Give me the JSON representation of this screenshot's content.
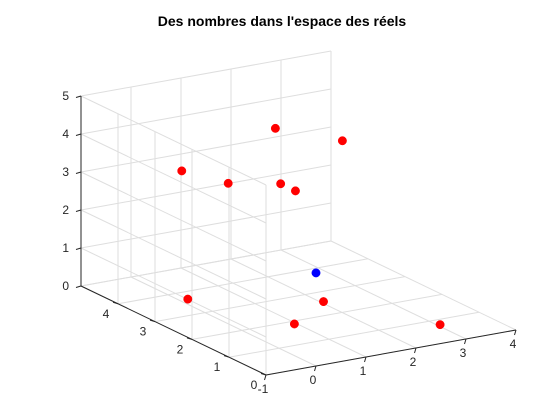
{
  "chart_data": {
    "type": "scatter",
    "title": "Des nombres dans l'espace des réels",
    "xlim": [
      -1,
      4
    ],
    "ylim": [
      0,
      5
    ],
    "zlim": [
      0,
      5
    ],
    "x_ticks": [
      -1,
      0,
      1,
      2,
      3,
      4
    ],
    "y_ticks": [
      0,
      1,
      2,
      3,
      4
    ],
    "z_ticks": [
      0,
      1,
      2,
      3,
      4,
      5
    ],
    "grid": true,
    "view": "3d",
    "series": [
      {
        "marker": "circle",
        "color": "#ff0000",
        "points": [
          {
            "x": 0.1,
            "y": 3.6,
            "z": 0.05
          },
          {
            "x": 3.0,
            "y": 0.7,
            "z": 0.05
          },
          {
            "x": -0.35,
            "y": 1.9,
            "z": 4.0
          },
          {
            "x": -0.65,
            "y": 2.75,
            "z": 4.0
          },
          {
            "x": 2.0,
            "y": 3.8,
            "z": 4.0
          },
          {
            "x": 2.0,
            "y": 2.5,
            "z": 0.05
          },
          {
            "x": 1.55,
            "y": 3.05,
            "z": 3.0
          },
          {
            "x": 0.9,
            "y": 1.8,
            "z": 0.05
          },
          {
            "x": 1.55,
            "y": 2.65,
            "z": 3.0
          },
          {
            "x": 2.6,
            "y": 2.8,
            "z": 4.0
          }
        ]
      },
      {
        "marker": "circle",
        "color": "#0000ff",
        "points": [
          {
            "x": 0.0,
            "y": 0.0,
            "z": 2.45
          }
        ]
      }
    ]
  }
}
